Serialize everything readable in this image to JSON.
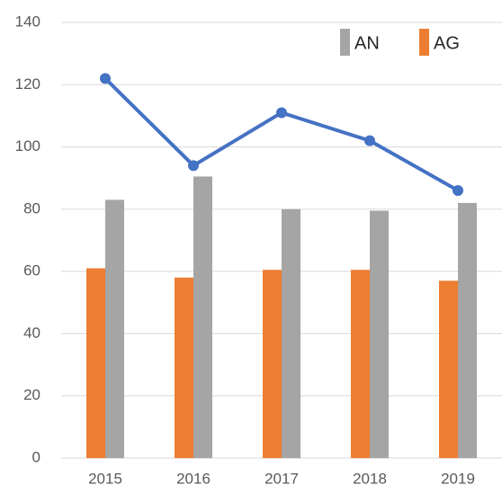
{
  "chart_data": {
    "type": "bar",
    "categories": [
      "2015",
      "2016",
      "2017",
      "2018",
      "2019"
    ],
    "series": [
      {
        "name": "AG",
        "color": "#ed7d31",
        "type": "bar",
        "values": [
          61,
          58,
          60.5,
          60.5,
          57
        ]
      },
      {
        "name": "AN",
        "color": "#a5a5a5",
        "type": "bar",
        "values": [
          83,
          90.5,
          80,
          79.5,
          82
        ]
      },
      {
        "color": "#4472c4",
        "type": "line",
        "values": [
          122,
          94,
          111,
          102,
          86
        ]
      }
    ],
    "ylim": [
      0,
      140
    ],
    "yticks": [
      0,
      20,
      40,
      60,
      80,
      100,
      120,
      140
    ],
    "grid": true,
    "legend": "top-right"
  }
}
